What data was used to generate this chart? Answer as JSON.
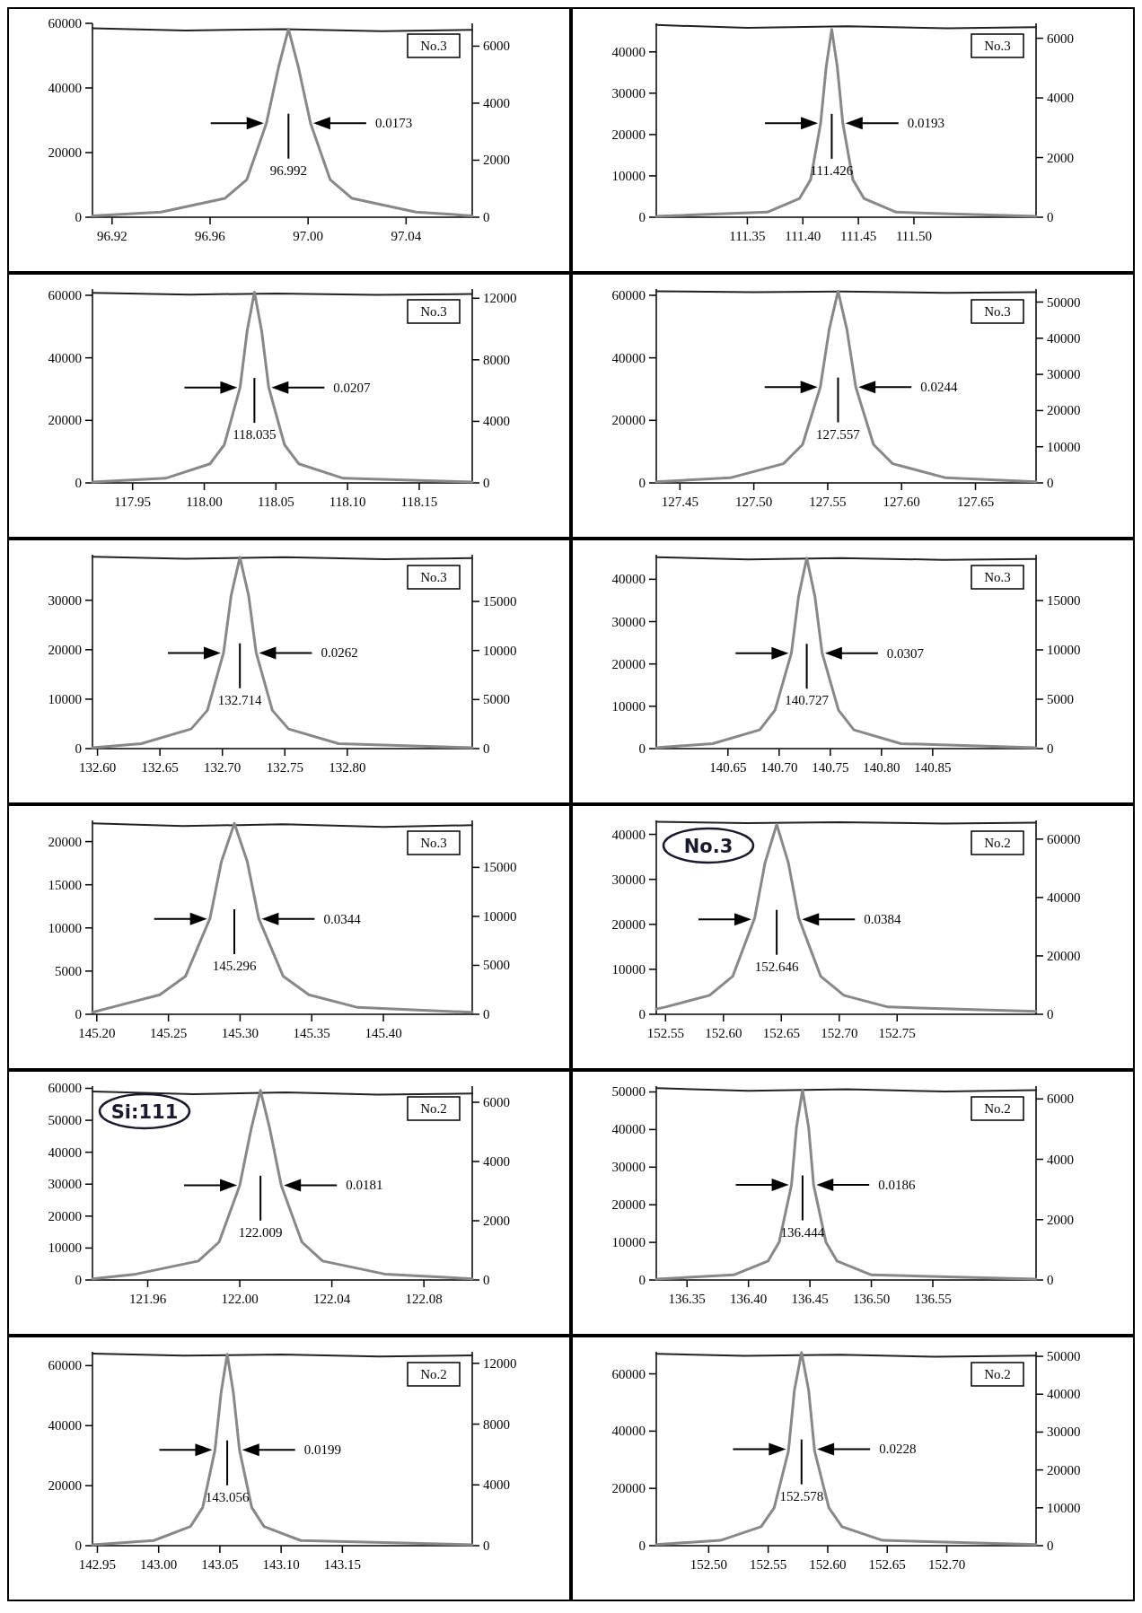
{
  "chart_data": [
    {
      "type": "line",
      "xlim": [
        96.912,
        97.067
      ],
      "xticks": [
        96.92,
        96.96,
        {
          "value": 97,
          "label": "97.00"
        },
        97.04
      ],
      "ylim": [
        0,
        60000
      ],
      "yticks": [
        0,
        20000,
        40000,
        60000
      ],
      "y2lim": [
        0,
        6800
      ],
      "y2ticks": [
        0,
        2000,
        4000,
        6000
      ],
      "series": [
        {
          "color": "#222222",
          "x": [
            96.912,
            96.95,
            96.99,
            97.03,
            97.067
          ],
          "values": [
            58500,
            57800,
            58200,
            57600,
            58000
          ]
        },
        {
          "color": "#888888",
          "axis": "y2",
          "x": [
            96.912,
            96.94,
            96.966,
            96.975,
            96.983,
            96.988,
            96.992,
            96.996,
            97.001,
            97.009,
            97.018,
            97.044,
            97.067
          ],
          "values": [
            50,
            180,
            660,
            1320,
            3300,
            5280,
            6600,
            5280,
            3300,
            1320,
            660,
            180,
            50
          ]
        }
      ],
      "annotations": [
        "No.3",
        "0.0173",
        "96.992"
      ]
    },
    {
      "type": "line",
      "xlim": [
        111.268,
        111.61
      ],
      "xticks": [
        111.35,
        {
          "value": 111.4,
          "label": "111.40"
        },
        111.45,
        {
          "value": 111.5,
          "label": "111.50"
        }
      ],
      "ylim": [
        0,
        46900
      ],
      "yticks": [
        0,
        10000,
        20000,
        30000,
        40000
      ],
      "y2lim": [
        0,
        6500
      ],
      "y2ticks": [
        0,
        2000,
        4000,
        6000
      ],
      "series": [
        {
          "color": "#222222",
          "x": [
            111.268,
            111.35,
            111.44,
            111.53,
            111.61
          ],
          "values": [
            46500,
            45800,
            46200,
            45700,
            46000
          ]
        },
        {
          "color": "#888888",
          "axis": "y2",
          "x": [
            111.268,
            111.368,
            111.397,
            111.407,
            111.416,
            111.421,
            111.426,
            111.431,
            111.436,
            111.445,
            111.455,
            111.484,
            111.61
          ],
          "values": [
            30,
            170,
            630,
            1260,
            3150,
            5040,
            6300,
            5040,
            3150,
            1260,
            630,
            170,
            30
          ]
        }
      ],
      "annotations": [
        "No.3",
        "0.0193",
        "111.426"
      ]
    },
    {
      "type": "line",
      "xlim": [
        117.922,
        118.187
      ],
      "xticks": [
        117.95,
        {
          "value": 118,
          "label": "118.00"
        },
        118.05,
        {
          "value": 118.1,
          "label": "118.10"
        },
        118.15
      ],
      "ylim": [
        0,
        62000
      ],
      "yticks": [
        0,
        20000,
        40000,
        60000
      ],
      "y2lim": [
        0,
        12600
      ],
      "y2ticks": [
        0,
        4000,
        8000,
        12000
      ],
      "series": [
        {
          "color": "#222222",
          "x": [
            117.922,
            117.99,
            118.05,
            118.12,
            118.187
          ],
          "values": [
            60800,
            60200,
            60600,
            60100,
            60400
          ]
        },
        {
          "color": "#888888",
          "axis": "y2",
          "x": [
            117.922,
            117.973,
            118.004,
            118.014,
            118.025,
            118.03,
            118.035,
            118.04,
            118.045,
            118.056,
            118.066,
            118.097,
            118.187
          ],
          "values": [
            60,
            300,
            1240,
            2480,
            6200,
            9920,
            12400,
            9920,
            6200,
            2480,
            1240,
            300,
            60
          ]
        }
      ],
      "annotations": [
        "No.3",
        "0.0207",
        "118.035"
      ]
    },
    {
      "type": "line",
      "xlim": [
        127.434,
        127.691
      ],
      "xticks": [
        127.45,
        {
          "value": 127.5,
          "label": "127.50"
        },
        127.55,
        {
          "value": 127.6,
          "label": "127.60"
        },
        127.65
      ],
      "ylim": [
        0,
        62000
      ],
      "yticks": [
        0,
        20000,
        40000,
        60000
      ],
      "y2lim": [
        0,
        53600
      ],
      "y2ticks": [
        0,
        10000,
        20000,
        30000,
        40000,
        50000
      ],
      "series": [
        {
          "color": "#222222",
          "x": [
            127.434,
            127.5,
            127.56,
            127.63,
            127.691
          ],
          "values": [
            61300,
            61000,
            61200,
            60800,
            61000
          ]
        },
        {
          "color": "#888888",
          "axis": "y2",
          "x": [
            127.434,
            127.484,
            127.52,
            127.533,
            127.545,
            127.551,
            127.557,
            127.563,
            127.569,
            127.581,
            127.594,
            127.63,
            127.691
          ],
          "values": [
            300,
            1400,
            5300,
            10600,
            26500,
            42400,
            53000,
            42400,
            26500,
            10600,
            5300,
            1400,
            300
          ]
        }
      ],
      "annotations": [
        "No.3",
        "0.0244",
        "127.557"
      ]
    },
    {
      "type": "line",
      "xlim": [
        132.596,
        132.9
      ],
      "xticks": [
        {
          "value": 132.6,
          "label": "132.60"
        },
        132.65,
        {
          "value": 132.7,
          "label": "132.70"
        },
        132.75,
        {
          "value": 132.8,
          "label": "132.80"
        }
      ],
      "ylim": [
        0,
        39200
      ],
      "yticks": [
        0,
        10000,
        20000,
        30000
      ],
      "y2lim": [
        0,
        19760
      ],
      "y2ticks": [
        0,
        5000,
        10000,
        15000
      ],
      "series": [
        {
          "color": "#222222",
          "x": [
            132.596,
            132.67,
            132.75,
            132.83,
            132.9
          ],
          "values": [
            38800,
            38400,
            38700,
            38300,
            38500
          ]
        },
        {
          "color": "#888888",
          "axis": "y2",
          "x": [
            132.596,
            132.635,
            132.675,
            132.688,
            132.701,
            132.707,
            132.714,
            132.721,
            132.727,
            132.74,
            132.753,
            132.793,
            132.9
          ],
          "values": [
            100,
            500,
            2000,
            3900,
            9800,
            15600,
            19500,
            15600,
            9800,
            3900,
            2000,
            500,
            100
          ]
        }
      ],
      "annotations": [
        "No.3",
        "0.0262",
        "132.714"
      ]
    },
    {
      "type": "line",
      "xlim": [
        140.58,
        140.951
      ],
      "xticks": [
        140.65,
        {
          "value": 140.7,
          "label": "140.70"
        },
        140.75,
        {
          "value": 140.8,
          "label": "140.80"
        },
        140.85
      ],
      "ylim": [
        0,
        45800
      ],
      "yticks": [
        0,
        10000,
        20000,
        30000,
        40000
      ],
      "y2lim": [
        0,
        19640
      ],
      "y2ticks": [
        0,
        5000,
        10000,
        15000
      ],
      "series": [
        {
          "color": "#222222",
          "x": [
            140.58,
            140.67,
            140.76,
            140.86,
            140.951
          ],
          "values": [
            45200,
            44700,
            45000,
            44600,
            44800
          ]
        },
        {
          "color": "#888888",
          "axis": "y2",
          "x": [
            140.58,
            140.635,
            140.681,
            140.696,
            140.712,
            140.719,
            140.727,
            140.735,
            140.742,
            140.758,
            140.773,
            140.819,
            140.951
          ],
          "values": [
            100,
            500,
            1900,
            3900,
            9700,
            15400,
            19300,
            15400,
            9700,
            3900,
            1900,
            500,
            100
          ]
        }
      ],
      "annotations": [
        "No.3",
        "0.0307",
        "140.727"
      ]
    },
    {
      "type": "line",
      "xlim": [
        145.197,
        145.462
      ],
      "xticks": [
        {
          "value": 145.2,
          "label": "145.20"
        },
        145.25,
        {
          "value": 145.3,
          "label": "145.30"
        },
        145.35,
        {
          "value": 145.4,
          "label": "145.40"
        }
      ],
      "ylim": [
        0,
        22450
      ],
      "yticks": [
        0,
        5000,
        10000,
        15000,
        20000
      ],
      "y2lim": [
        0,
        19800
      ],
      "y2ticks": [
        0,
        5000,
        10000,
        15000
      ],
      "series": [
        {
          "color": "#222222",
          "x": [
            145.197,
            145.26,
            145.33,
            145.4,
            145.462
          ],
          "values": [
            22100,
            21800,
            22000,
            21700,
            21900
          ]
        },
        {
          "color": "#888888",
          "axis": "y2",
          "x": [
            145.197,
            145.21,
            145.244,
            145.262,
            145.279,
            145.287,
            145.296,
            145.305,
            145.313,
            145.33,
            145.348,
            145.382,
            145.462
          ],
          "values": [
            200,
            700,
            2000,
            3900,
            9800,
            15600,
            19500,
            15600,
            9800,
            3900,
            2000,
            700,
            200
          ]
        }
      ],
      "annotations": [
        "No.3",
        "0.0344",
        "145.296"
      ]
    },
    {
      "type": "line",
      "xlim": [
        152.542,
        152.87
      ],
      "xticks": [
        152.55,
        {
          "value": 152.6,
          "label": "152.60"
        },
        152.65,
        {
          "value": 152.7,
          "label": "152.70"
        },
        152.75
      ],
      "ylim": [
        0,
        43100
      ],
      "yticks": [
        0,
        10000,
        20000,
        30000,
        40000
      ],
      "y2lim": [
        0,
        66400
      ],
      "y2ticks": [
        0,
        20000,
        40000,
        60000
      ],
      "series": [
        {
          "color": "#222222",
          "x": [
            152.542,
            152.62,
            152.7,
            152.79,
            152.87
          ],
          "values": [
            42800,
            42500,
            42700,
            42400,
            42600
          ]
        },
        {
          "color": "#888888",
          "axis": "y2",
          "x": [
            152.542,
            152.55,
            152.588,
            152.608,
            152.627,
            152.636,
            152.646,
            152.656,
            152.665,
            152.684,
            152.704,
            152.742,
            152.87
          ],
          "values": [
            1800,
            2500,
            6500,
            13000,
            33000,
            52000,
            65000,
            52000,
            33000,
            13000,
            6500,
            2500,
            1000
          ]
        }
      ],
      "annotations": [
        "No.2",
        "0.0384",
        "152.646",
        "No.3"
      ]
    },
    {
      "type": "line",
      "xlim": [
        121.936,
        122.101
      ],
      "xticks": [
        121.96,
        {
          "value": 122,
          "label": "122.00"
        },
        122.04,
        122.08
      ],
      "ylim": [
        0,
        60700
      ],
      "yticks": [
        0,
        10000,
        20000,
        30000,
        40000,
        50000,
        60000
      ],
      "y2lim": [
        0,
        6545
      ],
      "y2ticks": [
        0,
        2000,
        4000,
        6000
      ],
      "series": [
        {
          "color": "#222222",
          "x": [
            121.936,
            121.98,
            122.02,
            122.06,
            122.101
          ],
          "values": [
            59000,
            58200,
            58700,
            58000,
            58400
          ]
        },
        {
          "color": "#888888",
          "axis": "y2",
          "x": [
            121.936,
            121.955,
            121.982,
            121.991,
            122,
            122.005,
            122.009,
            122.013,
            122.018,
            122.027,
            122.036,
            122.063,
            122.101
          ],
          "values": [
            40,
            200,
            640,
            1280,
            3200,
            5120,
            6400,
            5120,
            3200,
            1280,
            640,
            200,
            40
          ]
        }
      ],
      "annotations": [
        "No.2",
        "0.0181",
        "122.009",
        "Si:111"
      ]
    },
    {
      "type": "line",
      "xlim": [
        136.325,
        136.634
      ],
      "xticks": [
        136.35,
        {
          "value": 136.4,
          "label": "136.40"
        },
        136.45,
        {
          "value": 136.5,
          "label": "136.50"
        },
        136.55
      ],
      "ylim": [
        0,
        51550
      ],
      "yticks": [
        0,
        10000,
        20000,
        30000,
        40000,
        50000
      ],
      "y2lim": [
        0,
        6425
      ],
      "y2ticks": [
        0,
        2000,
        4000,
        6000
      ],
      "series": [
        {
          "color": "#222222",
          "x": [
            136.325,
            136.4,
            136.48,
            136.56,
            136.634
          ],
          "values": [
            51000,
            50300,
            50700,
            50100,
            50500
          ]
        },
        {
          "color": "#888888",
          "axis": "y2",
          "x": [
            136.325,
            136.388,
            136.416,
            136.425,
            136.435,
            136.439,
            136.444,
            136.449,
            136.453,
            136.463,
            136.472,
            136.5,
            136.634
          ],
          "values": [
            30,
            170,
            630,
            1260,
            3150,
            5040,
            6300,
            5040,
            3150,
            1260,
            630,
            170,
            30
          ]
        }
      ],
      "annotations": [
        "No.2",
        "0.0186",
        "136.444"
      ]
    },
    {
      "type": "line",
      "xlim": [
        142.946,
        143.256
      ],
      "xticks": [
        142.95,
        {
          "value": 143,
          "label": "143.00"
        },
        143.05,
        {
          "value": 143.1,
          "label": "143.10"
        },
        143.15
      ],
      "ylim": [
        0,
        64600
      ],
      "yticks": [
        0,
        20000,
        40000,
        60000
      ],
      "y2lim": [
        0,
        12760
      ],
      "y2ticks": [
        0,
        4000,
        8000,
        12000
      ],
      "series": [
        {
          "color": "#222222",
          "x": [
            142.946,
            143.02,
            143.1,
            143.18,
            143.256
          ],
          "values": [
            64000,
            63300,
            63700,
            63000,
            63400
          ]
        },
        {
          "color": "#888888",
          "axis": "y2",
          "x": [
            142.946,
            142.996,
            143.026,
            143.036,
            143.046,
            143.051,
            143.056,
            143.061,
            143.066,
            143.076,
            143.086,
            143.116,
            143.256
          ],
          "values": [
            60,
            340,
            1260,
            2520,
            6300,
            10080,
            12600,
            10080,
            6300,
            2520,
            1260,
            340,
            60
          ]
        }
      ],
      "annotations": [
        "No.2",
        "0.0199",
        "143.056"
      ]
    },
    {
      "type": "line",
      "xlim": [
        152.456,
        152.775
      ],
      "xticks": [
        {
          "value": 152.5,
          "label": "152.50"
        },
        152.55,
        {
          "value": 152.6,
          "label": "152.60"
        },
        152.65,
        {
          "value": 152.7,
          "label": "152.70"
        }
      ],
      "ylim": [
        0,
        67700
      ],
      "yticks": [
        0,
        20000,
        40000,
        60000
      ],
      "y2lim": [
        0,
        51200
      ],
      "y2ticks": [
        0,
        10000,
        20000,
        30000,
        40000,
        50000
      ],
      "series": [
        {
          "color": "#222222",
          "x": [
            152.456,
            152.53,
            152.61,
            152.69,
            152.775
          ],
          "values": [
            67000,
            66300,
            66700,
            66000,
            66400
          ]
        },
        {
          "color": "#888888",
          "axis": "y2",
          "x": [
            152.456,
            152.51,
            152.544,
            152.555,
            152.567,
            152.572,
            152.578,
            152.584,
            152.589,
            152.601,
            152.612,
            152.646,
            152.775
          ],
          "values": [
            300,
            1400,
            5000,
            10000,
            25000,
            41000,
            51000,
            41000,
            25000,
            10000,
            5000,
            1400,
            300
          ]
        }
      ],
      "annotations": [
        "No.2",
        "0.0228",
        "152.578"
      ]
    }
  ]
}
